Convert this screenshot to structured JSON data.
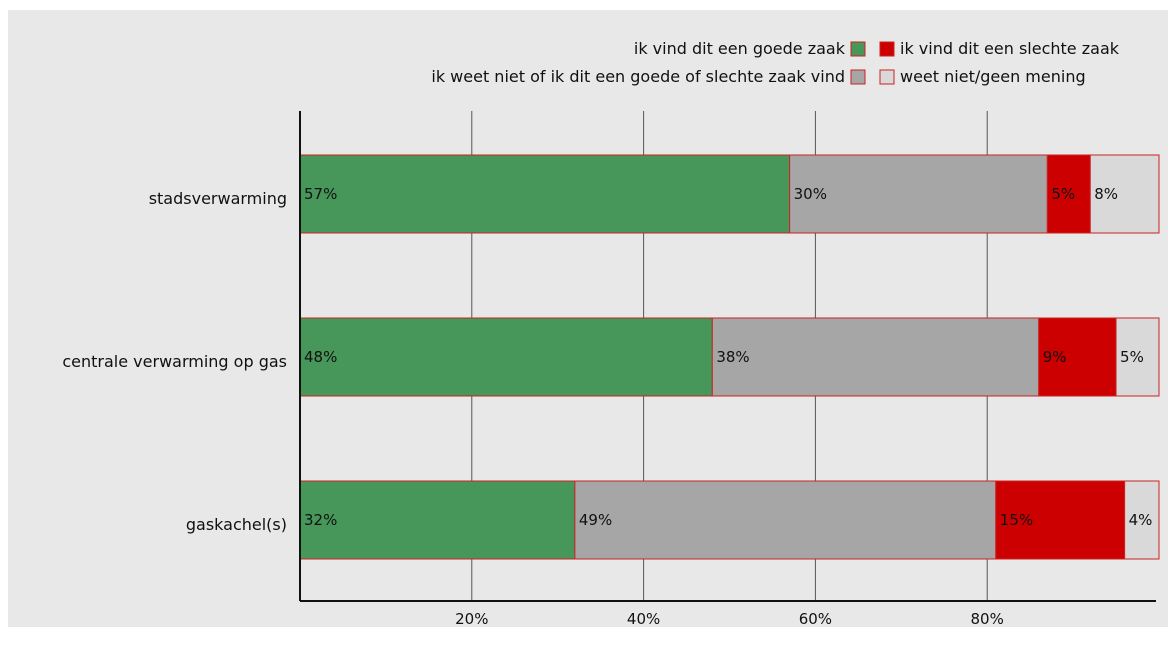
{
  "chart_data": {
    "type": "bar",
    "orientation": "horizontal",
    "stacked": true,
    "categories": [
      "stadsverwarming",
      "centrale verwarming op gas",
      "gaskachel(s)"
    ],
    "series": [
      {
        "name": "ik vind dit een goede zaak",
        "color": "#47975a",
        "values": [
          57,
          48,
          32
        ],
        "labels": [
          "57%",
          "48%",
          "32%"
        ]
      },
      {
        "name": "ik weet niet of ik dit een goede of slechte zaak vind",
        "color": "#a6a6a6",
        "values": [
          30,
          38,
          49
        ],
        "labels": [
          "30%",
          "38%",
          "49%"
        ]
      },
      {
        "name": "ik vind dit een slechte zaak",
        "color": "#cc0000",
        "values": [
          5,
          9,
          15
        ],
        "labels": [
          "5%",
          "9%",
          "15%"
        ]
      },
      {
        "name": "weet niet/geen mening",
        "color": "#d9d9d9",
        "values": [
          8,
          5,
          4
        ],
        "labels": [
          "8%",
          "5%",
          "4%"
        ]
      }
    ],
    "xticks": [
      "20%",
      "40%",
      "60%",
      "80%"
    ],
    "xtick_values": [
      20,
      40,
      60,
      80
    ],
    "xlim": [
      0,
      100
    ],
    "grid": true,
    "legend_position": "top-right"
  }
}
